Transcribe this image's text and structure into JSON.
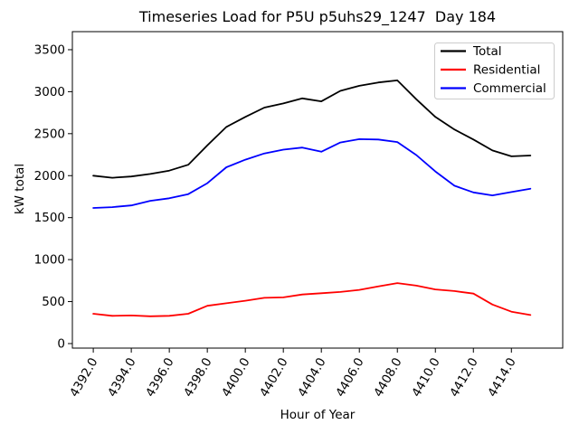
{
  "chart_data": {
    "type": "line",
    "title": "Timeseries Load for P5U p5uhs29_1247  Day 184",
    "xlabel": "Hour of Year",
    "ylabel": "kW total",
    "grid": false,
    "legend": {
      "position": "upper right",
      "entries": [
        "Total",
        "Residential",
        "Commercial"
      ]
    },
    "x": [
      4392,
      4393,
      4394,
      4395,
      4396,
      4397,
      4398,
      4399,
      4400,
      4401,
      4402,
      4403,
      4404,
      4405,
      4406,
      4407,
      4408,
      4409,
      4410,
      4411,
      4412,
      4413,
      4414,
      4415
    ],
    "series": [
      {
        "name": "Total",
        "color": "#000000",
        "values": [
          2000,
          1975,
          1990,
          2020,
          2060,
          2130,
          2360,
          2580,
          2700,
          2810,
          2860,
          2920,
          2885,
          3010,
          3070,
          3110,
          3135,
          2910,
          2700,
          2550,
          2430,
          2300,
          2230,
          2240
        ]
      },
      {
        "name": "Residential",
        "color": "#ff0000",
        "values": [
          355,
          330,
          335,
          325,
          330,
          355,
          450,
          480,
          510,
          545,
          550,
          585,
          600,
          615,
          640,
          680,
          720,
          690,
          645,
          625,
          595,
          465,
          380,
          340
        ]
      },
      {
        "name": "Commercial",
        "color": "#0000ff",
        "values": [
          1615,
          1625,
          1645,
          1700,
          1730,
          1780,
          1910,
          2100,
          2190,
          2265,
          2310,
          2335,
          2285,
          2395,
          2435,
          2430,
          2400,
          2245,
          2050,
          1880,
          1800,
          1765,
          1805,
          1845
        ]
      }
    ],
    "x_ticks": [
      4392,
      4394,
      4396,
      4398,
      4400,
      4402,
      4404,
      4406,
      4408,
      4410,
      4412,
      4414
    ],
    "x_tick_labels": [
      "4392.0",
      "4394.0",
      "4396.0",
      "4398.0",
      "4400.0",
      "4402.0",
      "4404.0",
      "4406.0",
      "4408.0",
      "4410.0",
      "4412.0",
      "4414.0"
    ],
    "y_ticks": [
      0,
      500,
      1000,
      1500,
      2000,
      2500,
      3000,
      3500
    ],
    "y_tick_labels": [
      "0",
      "500",
      "1000",
      "1500",
      "2000",
      "2500",
      "3000",
      "3500"
    ],
    "xlim": [
      4390.9,
      4416.7
    ],
    "ylim": [
      -54,
      3715
    ]
  }
}
